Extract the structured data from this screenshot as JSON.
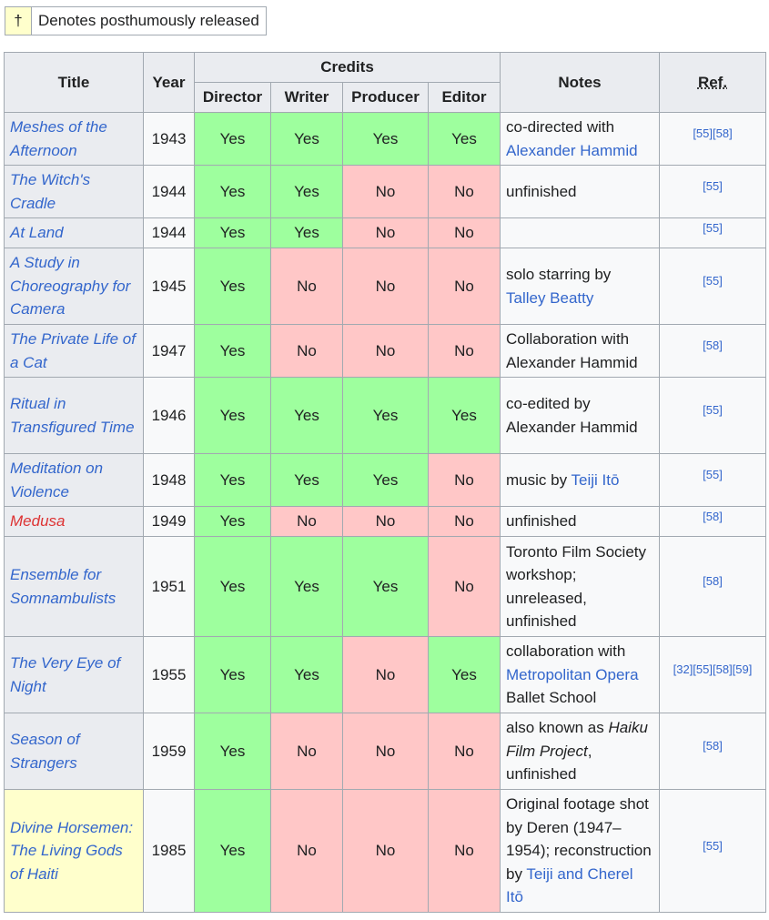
{
  "legend": {
    "symbol": "†",
    "text": "Denotes posthumously released"
  },
  "headers": {
    "title": "Title",
    "year": "Year",
    "credits": "Credits",
    "director": "Director",
    "writer": "Writer",
    "producer": "Producer",
    "editor": "Editor",
    "notes": "Notes",
    "ref": "Ref."
  },
  "rows": [
    {
      "title": "Meshes of the Afternoon",
      "year": "1943",
      "director": "Yes",
      "writer": "Yes",
      "producer": "Yes",
      "editor": "Yes",
      "notes": [
        {
          "t": "co-directed with "
        },
        {
          "t": "Alexander Hammid",
          "link": true
        }
      ],
      "ref": "[55][58]"
    },
    {
      "title": "The Witch's Cradle",
      "year": "1944",
      "director": "Yes",
      "writer": "Yes",
      "producer": "No",
      "editor": "No",
      "notes": [
        {
          "t": "unfinished"
        }
      ],
      "ref": "[55]"
    },
    {
      "title": "At Land",
      "year": "1944",
      "director": "Yes",
      "writer": "Yes",
      "producer": "No",
      "editor": "No",
      "notes": [],
      "ref": "[55]"
    },
    {
      "title": "A Study in Choreography for Camera",
      "year": "1945",
      "director": "Yes",
      "writer": "No",
      "producer": "No",
      "editor": "No",
      "notes": [
        {
          "t": "solo starring by "
        },
        {
          "t": "Talley Beatty",
          "link": true
        }
      ],
      "ref": "[55]"
    },
    {
      "title": "The Private Life of a Cat",
      "year": "1947",
      "director": "Yes",
      "writer": "No",
      "producer": "No",
      "editor": "No",
      "notes": [
        {
          "t": "Collaboration with Alexander Hammid"
        }
      ],
      "ref": "[58]"
    },
    {
      "title": "Ritual in Transfigured Time",
      "year": "1946",
      "director": "Yes",
      "writer": "Yes",
      "producer": "Yes",
      "editor": "Yes",
      "notes": [
        {
          "t": "co-edited by Alexander Hammid"
        }
      ],
      "ref": "[55]"
    },
    {
      "title": "Meditation on Violence",
      "year": "1948",
      "director": "Yes",
      "writer": "Yes",
      "producer": "Yes",
      "editor": "No",
      "notes": [
        {
          "t": "music by "
        },
        {
          "t": "Teiji Itō",
          "link": true
        }
      ],
      "ref": "[55]"
    },
    {
      "title": "Medusa",
      "year": "1949",
      "director": "Yes",
      "writer": "No",
      "producer": "No",
      "editor": "No",
      "red": true,
      "notes": [
        {
          "t": "unfinished"
        }
      ],
      "ref": "[58]"
    },
    {
      "title": "Ensemble for Somnambulists",
      "year": "1951",
      "director": "Yes",
      "writer": "Yes",
      "producer": "Yes",
      "editor": "No",
      "notes": [
        {
          "t": "Toronto Film Society workshop; unreleased, unfinished"
        }
      ],
      "ref": "[58]"
    },
    {
      "title": "The Very Eye of Night",
      "year": "1955",
      "director": "Yes",
      "writer": "Yes",
      "producer": "No",
      "editor": "Yes",
      "notes": [
        {
          "t": "collaboration with "
        },
        {
          "t": "Metropolitan Opera",
          "link": true
        },
        {
          "t": " Ballet School"
        }
      ],
      "ref": "[32][55][58][59]"
    },
    {
      "title": "Season of Strangers",
      "year": "1959",
      "director": "Yes",
      "writer": "No",
      "producer": "No",
      "editor": "No",
      "notes": [
        {
          "t": "also known as "
        },
        {
          "t": "Haiku Film Project",
          "italic": true
        },
        {
          "t": ", unfinished"
        }
      ],
      "ref": "[58]"
    },
    {
      "title": "Divine Horsemen: The Living Gods of Haiti",
      "year": "1985",
      "director": "Yes",
      "writer": "No",
      "producer": "No",
      "editor": "No",
      "posthumous": true,
      "notes": [
        {
          "t": "Original footage shot by Deren (1947–1954); reconstruction by "
        },
        {
          "t": "Teiji and Cherel Itō",
          "link": true
        }
      ],
      "ref": "[55]"
    }
  ]
}
